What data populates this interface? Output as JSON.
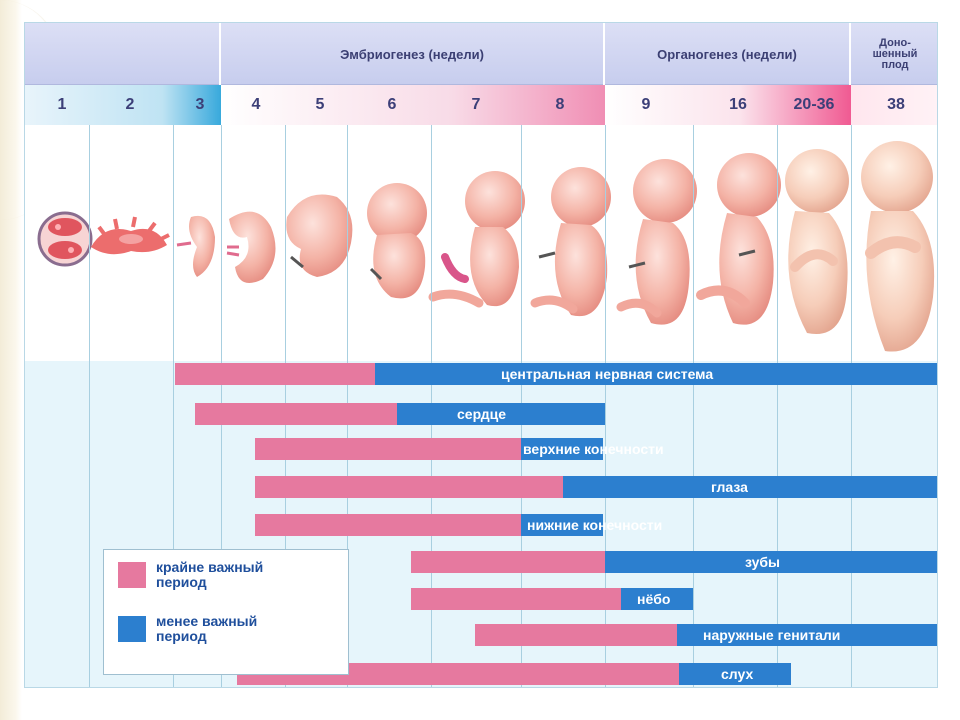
{
  "header": {
    "embryogenesis": "Эмбриогенез (недели)",
    "organogenesis": "Органогенез (недели)",
    "fullterm": [
      "Доно-",
      "шенный",
      "плод"
    ]
  },
  "weeks": [
    "1",
    "2",
    "3",
    "4",
    "5",
    "6",
    "7",
    "8",
    "9",
    "16",
    "20-36",
    "38"
  ],
  "legend": {
    "critical": [
      "крайне важный",
      "период"
    ],
    "less": [
      "менее важный",
      "период"
    ],
    "colors": {
      "critical": "#e6799f",
      "less": "#2c7fcf"
    }
  },
  "organs": [
    {
      "name": "центральная нервная система",
      "critical_weeks": "3–6",
      "less_weeks": "6–38"
    },
    {
      "name": "сердце",
      "critical_weeks": "3–6",
      "less_weeks": "6–8"
    },
    {
      "name": "верхние конечности",
      "critical_weeks": "4–8",
      "less_weeks": "8"
    },
    {
      "name": "глаза",
      "critical_weeks": "4–8",
      "less_weeks": "8–38"
    },
    {
      "name": "нижние конечности",
      "critical_weeks": "4–8",
      "less_weeks": "8"
    },
    {
      "name": "зубы",
      "critical_weeks": "7–8",
      "less_weeks": "9–38"
    },
    {
      "name": "нёбо",
      "critical_weeks": "7–9",
      "less_weeks": "9–16"
    },
    {
      "name": "наружные генитали",
      "critical_weeks": "7–9",
      "less_weeks": "9–38"
    },
    {
      "name": "слух",
      "critical_weeks": "4–9",
      "less_weeks": "9–20"
    }
  ]
}
